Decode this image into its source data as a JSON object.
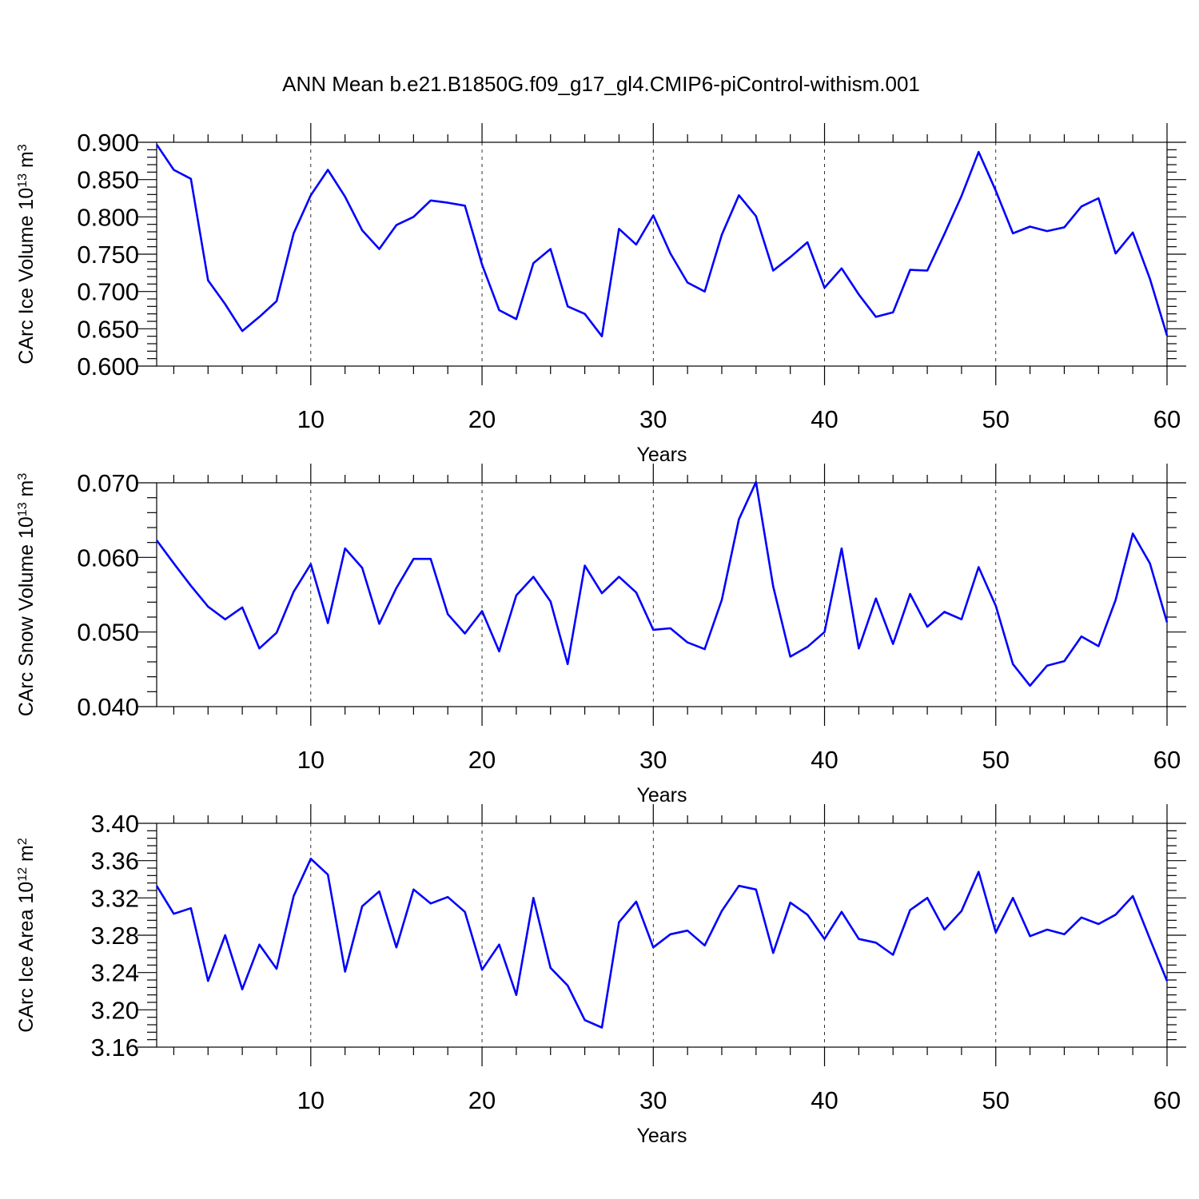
{
  "figure": {
    "title": "ANN Mean b.e21.B1850G.f09_g17_gl4.CMIP6-piControl-withism.001",
    "line_color": "#0000ff"
  },
  "chart_data": [
    {
      "type": "line",
      "title": "ANN Mean b.e21.B1850G.f09_g17_gl4.CMIP6-piControl-withism.001",
      "xlabel": "Years",
      "ylabel": "CArc Ice Volume 10",
      "ylabel_exp": "13",
      "ylabel_unit": " m",
      "ylabel_unit_exp": "3",
      "xlim": [
        1,
        60
      ],
      "ylim": [
        0.6,
        0.9
      ],
      "xticks": [
        10,
        20,
        30,
        40,
        50,
        60
      ],
      "yticks": [
        "0.600",
        "0.650",
        "0.700",
        "0.750",
        "0.800",
        "0.850",
        "0.900"
      ],
      "ytick_values": [
        0.6,
        0.65,
        0.7,
        0.75,
        0.8,
        0.85,
        0.9
      ],
      "grid": "vertical dashed at major x ticks",
      "series": [
        {
          "x": [
            1,
            2,
            3,
            4,
            5,
            6,
            7,
            8,
            9,
            10,
            11,
            12,
            13,
            14,
            15,
            16,
            17,
            18,
            19,
            20,
            21,
            22,
            23,
            24,
            25,
            26,
            27,
            28,
            29,
            30,
            31,
            32,
            33,
            34,
            35,
            36,
            37,
            38,
            39,
            40,
            41,
            42,
            43,
            44,
            45,
            46,
            47,
            48,
            49,
            50,
            51,
            52,
            53,
            54,
            55,
            56,
            57,
            58,
            59,
            60
          ],
          "values": [
            0.897,
            0.863,
            0.851,
            0.715,
            0.683,
            0.647,
            0.666,
            0.687,
            0.778,
            0.829,
            0.863,
            0.827,
            0.782,
            0.757,
            0.789,
            0.8,
            0.822,
            0.819,
            0.815,
            0.736,
            0.675,
            0.663,
            0.738,
            0.757,
            0.68,
            0.67,
            0.64,
            0.784,
            0.763,
            0.802,
            0.751,
            0.712,
            0.7,
            0.776,
            0.829,
            0.801,
            0.728,
            0.746,
            0.766,
            0.705,
            0.731,
            0.696,
            0.666,
            0.672,
            0.729,
            0.728,
            0.777,
            0.828,
            0.887,
            0.835,
            0.778,
            0.787,
            0.781,
            0.786,
            0.814,
            0.825,
            0.751,
            0.779,
            0.717,
            0.641
          ]
        }
      ]
    },
    {
      "type": "line",
      "xlabel": "Years",
      "ylabel": "CArc Snow Volume 10",
      "ylabel_exp": "13",
      "ylabel_unit": " m",
      "ylabel_unit_exp": "3",
      "xlim": [
        1,
        60
      ],
      "ylim": [
        0.04,
        0.07
      ],
      "xticks": [
        10,
        20,
        30,
        40,
        50,
        60
      ],
      "yticks": [
        "0.040",
        "0.050",
        "0.060",
        "0.070"
      ],
      "ytick_values": [
        0.04,
        0.05,
        0.06,
        0.07
      ],
      "grid": "vertical dashed at major x ticks",
      "series": [
        {
          "x": [
            1,
            2,
            3,
            4,
            5,
            6,
            7,
            8,
            9,
            10,
            11,
            12,
            13,
            14,
            15,
            16,
            17,
            18,
            19,
            20,
            21,
            22,
            23,
            24,
            25,
            26,
            27,
            28,
            29,
            30,
            31,
            32,
            33,
            34,
            35,
            36,
            37,
            38,
            39,
            40,
            41,
            42,
            43,
            44,
            45,
            46,
            47,
            48,
            49,
            50,
            51,
            52,
            53,
            54,
            55,
            56,
            57,
            58,
            59,
            60
          ],
          "values": [
            0.0623,
            0.0592,
            0.0562,
            0.0534,
            0.0517,
            0.0533,
            0.0478,
            0.0499,
            0.0554,
            0.0591,
            0.0512,
            0.0612,
            0.0586,
            0.0511,
            0.0559,
            0.0598,
            0.0598,
            0.0524,
            0.0498,
            0.0528,
            0.0474,
            0.0549,
            0.0574,
            0.0541,
            0.0457,
            0.0589,
            0.0552,
            0.0574,
            0.0553,
            0.0503,
            0.0505,
            0.0486,
            0.0477,
            0.0543,
            0.0651,
            0.0701,
            0.0561,
            0.0467,
            0.048,
            0.05,
            0.0612,
            0.0478,
            0.0545,
            0.0484,
            0.0551,
            0.0507,
            0.0527,
            0.0517,
            0.0587,
            0.0535,
            0.0457,
            0.0428,
            0.0455,
            0.0461,
            0.0494,
            0.0481,
            0.0543,
            0.0632,
            0.0592,
            0.0513
          ]
        }
      ]
    },
    {
      "type": "line",
      "xlabel": "Years",
      "ylabel": "CArc Ice Area 10",
      "ylabel_exp": "12",
      "ylabel_unit": " m",
      "ylabel_unit_exp": "2",
      "xlim": [
        1,
        60
      ],
      "ylim": [
        3.16,
        3.4
      ],
      "xticks": [
        10,
        20,
        30,
        40,
        50,
        60
      ],
      "yticks": [
        "3.16",
        "3.20",
        "3.24",
        "3.28",
        "3.32",
        "3.36",
        "3.40"
      ],
      "ytick_values": [
        3.16,
        3.2,
        3.24,
        3.28,
        3.32,
        3.36,
        3.4
      ],
      "grid": "vertical dashed at major x ticks",
      "series": [
        {
          "x": [
            1,
            2,
            3,
            4,
            5,
            6,
            7,
            8,
            9,
            10,
            11,
            12,
            13,
            14,
            15,
            16,
            17,
            18,
            19,
            20,
            21,
            22,
            23,
            24,
            25,
            26,
            27,
            28,
            29,
            30,
            31,
            32,
            33,
            34,
            35,
            36,
            37,
            38,
            39,
            40,
            41,
            42,
            43,
            44,
            45,
            46,
            47,
            48,
            49,
            50,
            51,
            52,
            53,
            54,
            55,
            56,
            57,
            58,
            59,
            60
          ],
          "values": [
            3.333,
            3.303,
            3.309,
            3.231,
            3.28,
            3.222,
            3.27,
            3.244,
            3.322,
            3.362,
            3.345,
            3.241,
            3.311,
            3.327,
            3.267,
            3.329,
            3.314,
            3.321,
            3.305,
            3.243,
            3.27,
            3.216,
            3.32,
            3.245,
            3.226,
            3.189,
            3.181,
            3.294,
            3.316,
            3.267,
            3.281,
            3.285,
            3.269,
            3.306,
            3.333,
            3.329,
            3.261,
            3.315,
            3.302,
            3.276,
            3.305,
            3.276,
            3.272,
            3.259,
            3.307,
            3.32,
            3.286,
            3.306,
            3.348,
            3.283,
            3.32,
            3.279,
            3.286,
            3.281,
            3.299,
            3.292,
            3.302,
            3.322,
            3.276,
            3.231
          ]
        }
      ]
    }
  ]
}
